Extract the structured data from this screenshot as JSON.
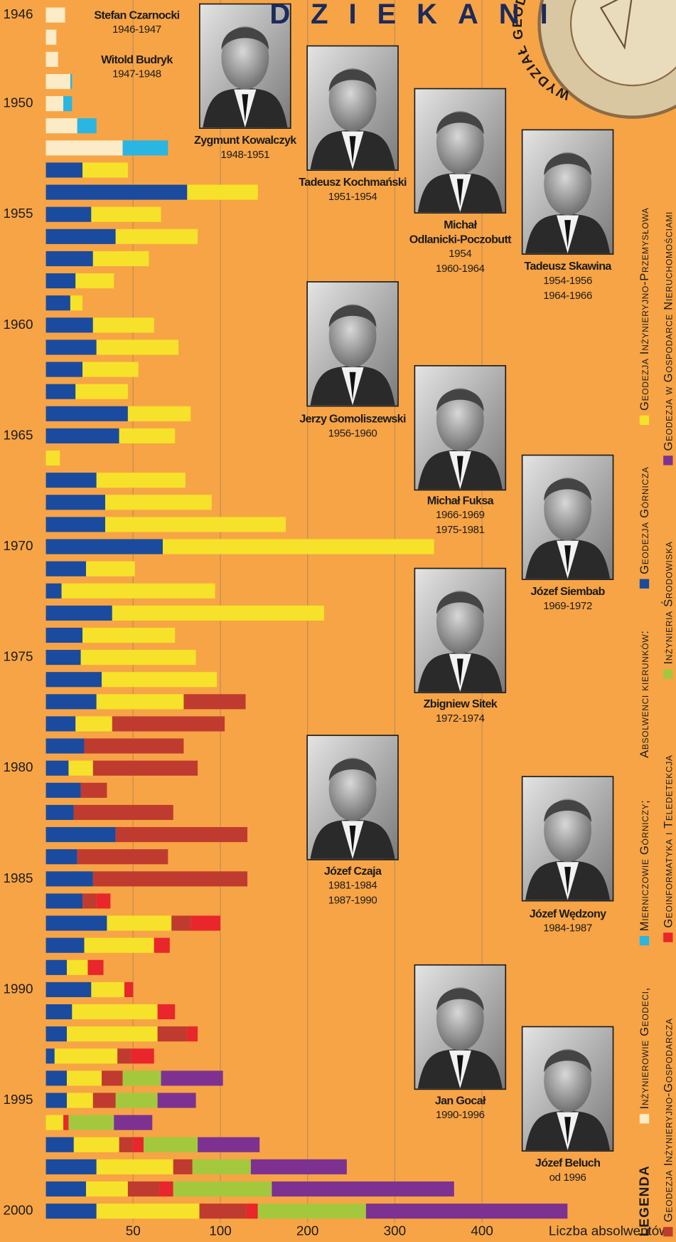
{
  "title": "DZIEKANI",
  "emblem_text": "WYDZIAŁ GEOD",
  "deans": [
    {
      "name": [
        "Stefan Czarnocki"
      ],
      "terms": [
        "1946-1947"
      ]
    },
    {
      "name": [
        "Witold Budryk"
      ],
      "terms": [
        "1947-1948"
      ]
    },
    {
      "name": [
        "Zygmunt Kowalczyk"
      ],
      "terms": [
        "1948-1951"
      ]
    },
    {
      "name": [
        "Tadeusz Kochmański"
      ],
      "terms": [
        "1951-1954"
      ]
    },
    {
      "name": [
        "Michał",
        "Odlanicki-Poczobutt"
      ],
      "terms": [
        "1954",
        "1960-1964"
      ]
    },
    {
      "name": [
        "Tadeusz Skawina"
      ],
      "terms": [
        "1954-1956",
        "1964-1966"
      ]
    },
    {
      "name": [
        "Jerzy Gomoliszewski"
      ],
      "terms": [
        "1956-1960"
      ]
    },
    {
      "name": [
        "Michał Fuksa"
      ],
      "terms": [
        "1966-1969",
        "1975-1981"
      ]
    },
    {
      "name": [
        "Józef Siembab"
      ],
      "terms": [
        "1969-1972"
      ]
    },
    {
      "name": [
        "Zbigniew Sitek"
      ],
      "terms": [
        "1972-1974"
      ]
    },
    {
      "name": [
        "Józef Czaja"
      ],
      "terms": [
        "1981-1984",
        "1987-1990"
      ]
    },
    {
      "name": [
        "Józef Wędzony"
      ],
      "terms": [
        "1984-1987"
      ]
    },
    {
      "name": [
        "Jan Gocał"
      ],
      "terms": [
        "1990-1996"
      ]
    },
    {
      "name": [
        "Józef Beluch"
      ],
      "terms": [
        "od 1996"
      ]
    }
  ],
  "chart_data": {
    "type": "bar",
    "orientation": "horizontal",
    "stacked": true,
    "x_label": "Liczba absolwentów",
    "legend_title": "LEGENDA",
    "legend_note": "Absolwenci kierunków:",
    "xlim": [
      0,
      500
    ],
    "xticks": [
      50,
      100,
      200,
      300,
      400
    ],
    "grid": true,
    "categories": [
      "1946",
      null,
      null,
      null,
      "1950",
      null,
      null,
      null,
      null,
      "1955",
      null,
      null,
      null,
      null,
      "1960",
      null,
      null,
      null,
      null,
      "1965",
      null,
      null,
      null,
      null,
      "1970",
      null,
      null,
      null,
      null,
      "1975",
      null,
      null,
      null,
      null,
      "1980",
      null,
      null,
      null,
      null,
      "1985",
      null,
      null,
      null,
      null,
      "1990",
      null,
      null,
      null,
      null,
      "1995",
      null,
      null,
      null,
      null,
      "2000"
    ],
    "series": [
      {
        "name": "Inżynierowie Geodeci,",
        "color": "#FBEBC6",
        "values": [
          11,
          6,
          7,
          14,
          10,
          18,
          44,
          null,
          null,
          null,
          null,
          null,
          null,
          null,
          null,
          null,
          null,
          null,
          null,
          null,
          null,
          null,
          null,
          null,
          null,
          null,
          null,
          null,
          null,
          null,
          null,
          null,
          null,
          null,
          null,
          null,
          null,
          null,
          null,
          null,
          null,
          null,
          null,
          null,
          null,
          null,
          null,
          null,
          null,
          null,
          null,
          null,
          null,
          null,
          null
        ]
      },
      {
        "name": "Mierniczowie Górniczy;",
        "color": "#2AB6E2",
        "values": [
          null,
          null,
          null,
          1,
          5,
          11,
          26,
          null,
          null,
          null,
          null,
          null,
          null,
          null,
          null,
          null,
          null,
          null,
          null,
          null,
          null,
          null,
          null,
          null,
          null,
          null,
          null,
          null,
          null,
          null,
          null,
          null,
          null,
          null,
          null,
          null,
          null,
          null,
          null,
          null,
          null,
          null,
          null,
          null,
          null,
          null,
          null,
          null,
          null,
          null,
          null,
          null,
          null,
          null,
          null
        ]
      },
      {
        "name": "Geodezja Górnicza",
        "color": "#1B4B9E",
        "values": [
          null,
          null,
          null,
          null,
          null,
          null,
          null,
          21,
          81,
          26,
          40,
          27,
          17,
          14,
          27,
          29,
          21,
          17,
          47,
          42,
          null,
          29,
          34,
          34,
          67,
          23,
          9,
          38,
          21,
          20,
          32,
          29,
          17,
          22,
          13,
          20,
          16,
          40,
          18,
          27,
          21,
          35,
          22,
          12,
          26,
          15,
          12,
          5,
          12,
          12,
          null,
          16,
          29,
          23,
          29
        ]
      },
      {
        "name": "Geodezja Inżynieryjno-Przemysłowa",
        "color": "#F6E22A",
        "values": [
          null,
          null,
          null,
          null,
          null,
          null,
          null,
          26,
          62,
          40,
          47,
          32,
          22,
          7,
          35,
          47,
          32,
          30,
          36,
          32,
          8,
          51,
          61,
          141,
          278,
          28,
          88,
          181,
          53,
          66,
          66,
          50,
          21,
          null,
          14,
          null,
          null,
          null,
          null,
          null,
          null,
          37,
          40,
          12,
          19,
          49,
          52,
          36,
          20,
          15,
          10,
          26,
          44,
          24,
          59
        ]
      },
      {
        "name": "Geodezja Inżynieryjno-Gospodarcza",
        "color": "#BF3B2F",
        "values": [
          null,
          null,
          null,
          null,
          null,
          null,
          null,
          null,
          null,
          null,
          null,
          null,
          null,
          null,
          null,
          null,
          null,
          null,
          null,
          null,
          null,
          null,
          null,
          null,
          null,
          null,
          null,
          null,
          null,
          null,
          null,
          50,
          67,
          57,
          60,
          15,
          57,
          91,
          52,
          104,
          8,
          11,
          null,
          null,
          null,
          null,
          17,
          8,
          12,
          13,
          null,
          8,
          11,
          18,
          42
        ]
      },
      {
        "name": "Geoinformatyka i Teledetekcja",
        "color": "#E8262B",
        "values": [
          null,
          null,
          null,
          null,
          null,
          null,
          null,
          null,
          null,
          null,
          null,
          null,
          null,
          null,
          null,
          null,
          null,
          null,
          null,
          null,
          null,
          null,
          null,
          null,
          null,
          null,
          null,
          null,
          null,
          null,
          null,
          null,
          null,
          null,
          null,
          null,
          null,
          null,
          null,
          null,
          8,
          17,
          9,
          9,
          5,
          10,
          6,
          13,
          null,
          null,
          3,
          6,
          null,
          8,
          13
        ]
      },
      {
        "name": "Inżynieria Środowiska",
        "color": "#A4C83D",
        "values": [
          null,
          null,
          null,
          null,
          null,
          null,
          null,
          null,
          null,
          null,
          null,
          null,
          null,
          null,
          null,
          null,
          null,
          null,
          null,
          null,
          null,
          null,
          null,
          null,
          null,
          null,
          null,
          null,
          null,
          null,
          null,
          null,
          null,
          null,
          null,
          null,
          null,
          null,
          null,
          null,
          null,
          null,
          null,
          null,
          null,
          null,
          null,
          null,
          22,
          24,
          26,
          31,
          51,
          86,
          124
        ]
      },
      {
        "name": "Geodezja w Gospodarce Nieruchomościami",
        "color": "#7D3292",
        "values": [
          null,
          null,
          null,
          null,
          null,
          null,
          null,
          null,
          null,
          null,
          null,
          null,
          null,
          null,
          null,
          null,
          null,
          null,
          null,
          null,
          null,
          null,
          null,
          null,
          null,
          null,
          null,
          null,
          null,
          null,
          null,
          null,
          null,
          null,
          null,
          null,
          null,
          null,
          null,
          null,
          null,
          null,
          null,
          null,
          null,
          null,
          null,
          null,
          37,
          22,
          22,
          58,
          110,
          209,
          231
        ]
      }
    ]
  }
}
